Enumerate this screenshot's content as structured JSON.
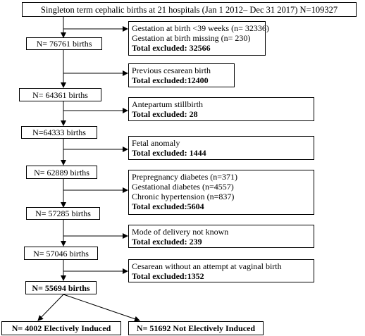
{
  "top_box": "Singleton term cephalic births at 21 hospitals  (Jan 1  2012– Dec 31 2017) N=109327",
  "steps": [
    {
      "count_label": "N= 76761 births",
      "exclusion_lines": [
        "Gestation at birth <39 weeks (n= 32336)",
        "Gestation at birth missing (n= 230)"
      ],
      "exclusion_total": "Total excluded: 32566"
    },
    {
      "count_label": "N= 64361  births",
      "exclusion_lines": [
        "Previous cesarean birth"
      ],
      "exclusion_total": "Total excluded:12400"
    },
    {
      "count_label": "N=64333 births",
      "exclusion_lines": [
        "Antepartum stillbirth"
      ],
      "exclusion_total": "Total excluded: 28"
    },
    {
      "count_label": "N= 62889 births",
      "exclusion_lines": [
        "Fetal anomaly"
      ],
      "exclusion_total": "Total excluded: 1444"
    },
    {
      "count_label": "N= 57285 births",
      "exclusion_lines": [
        "Prepregnancy diabetes (n=371)",
        "Gestational diabetes (n=4557)",
        "Chronic hypertension (n=837)"
      ],
      "exclusion_total": "Total excluded:5604"
    },
    {
      "count_label": "N= 57046 births",
      "exclusion_lines": [
        "Mode of delivery not known"
      ],
      "exclusion_total": "Total excluded: 239"
    },
    {
      "count_label": "N= 55694 births",
      "exclusion_lines": [
        "Cesarean without an attempt at vaginal birth"
      ],
      "exclusion_total": "Total excluded:1352"
    }
  ],
  "final_left": "N= 4002 Electively Induced",
  "final_right": "N= 51692 Not Electively Induced"
}
